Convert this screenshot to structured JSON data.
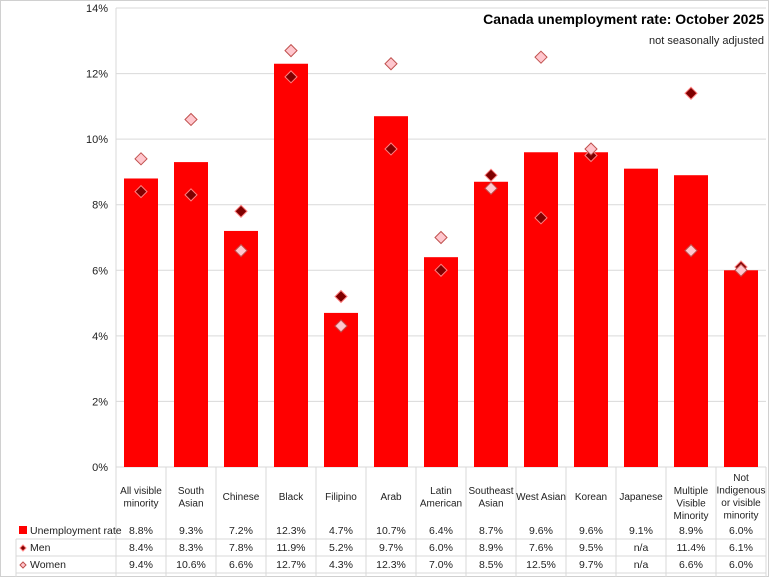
{
  "chart_data": {
    "type": "bar",
    "title": "Canada unemployment rate: October 2025",
    "subtitle": "not seasonally adjusted",
    "ylim": [
      0,
      14
    ],
    "yticks": [
      0,
      2,
      4,
      6,
      8,
      10,
      12,
      14
    ],
    "ytick_format": "%",
    "grid": true,
    "categories": [
      [
        "All visible",
        "minority"
      ],
      [
        "South",
        "Asian"
      ],
      [
        "Chinese"
      ],
      [
        "Black"
      ],
      [
        "Filipino"
      ],
      [
        "Arab"
      ],
      [
        "Latin",
        "American"
      ],
      [
        "Southeast",
        "Asian"
      ],
      [
        "West Asian"
      ],
      [
        "Korean"
      ],
      [
        "Japanese"
      ],
      [
        "Multiple",
        "Visible",
        "Minority"
      ],
      [
        "Not",
        "Indigenous",
        "or visible",
        "minority"
      ]
    ],
    "series": [
      {
        "name": "Unemployment rate",
        "kind": "bar",
        "color": "#FF0000",
        "values": [
          8.8,
          9.3,
          7.2,
          12.3,
          4.7,
          10.7,
          6.4,
          8.7,
          9.6,
          9.6,
          9.1,
          8.9,
          6.0
        ]
      },
      {
        "name": "Men",
        "kind": "diamond",
        "color": "#800000",
        "values": [
          8.4,
          8.3,
          7.8,
          11.9,
          5.2,
          9.7,
          6.0,
          8.9,
          7.6,
          9.5,
          null,
          11.4,
          6.1
        ]
      },
      {
        "name": "Women",
        "kind": "diamond",
        "color": "#FFC7CE",
        "values": [
          9.4,
          10.6,
          6.6,
          12.7,
          4.3,
          12.3,
          7.0,
          8.5,
          12.5,
          9.7,
          null,
          6.6,
          6.0
        ]
      }
    ],
    "missing_label": "n/a",
    "legend": "data-table"
  }
}
